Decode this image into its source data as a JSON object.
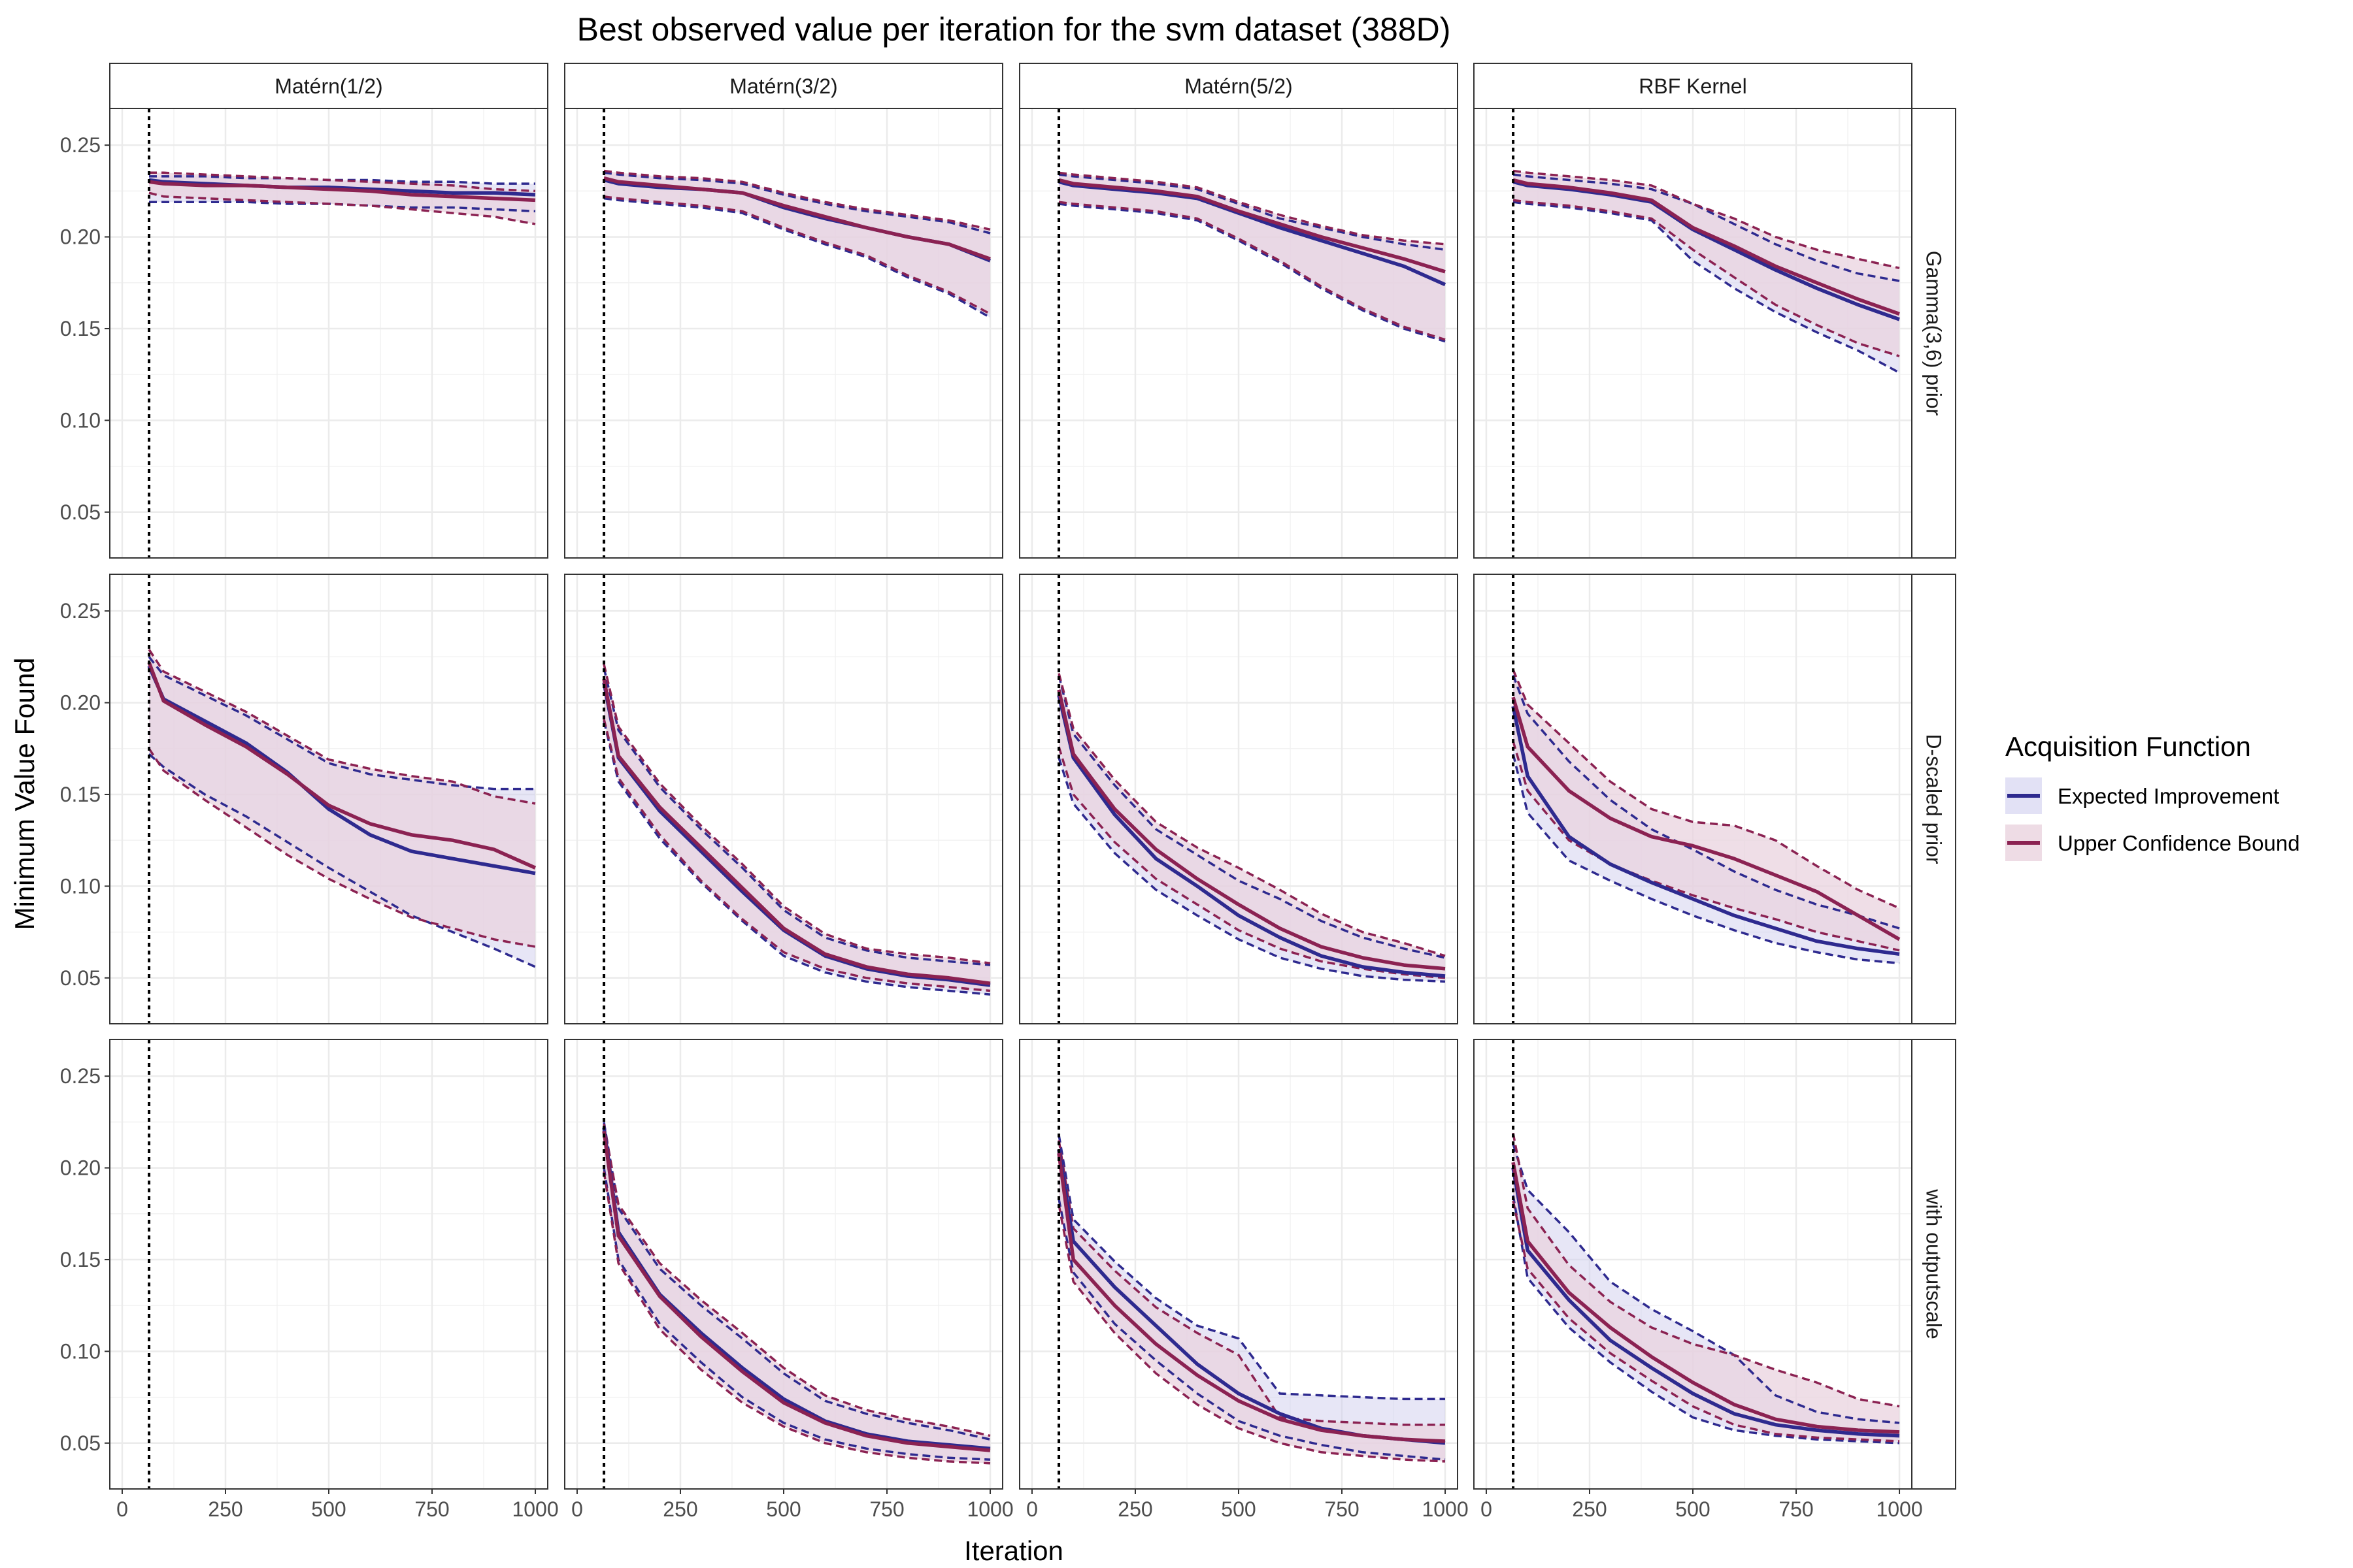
{
  "chart_data": {
    "type": "line",
    "title": "Best observed value per iteration for the svm dataset (388D)",
    "xlabel": "Iteration",
    "ylabel": "Minimum Value Found",
    "xlim": [
      -30,
      1030
    ],
    "ylim": [
      0.025,
      0.27
    ],
    "x_ticks": [
      0,
      250,
      500,
      750,
      1000
    ],
    "y_ticks": [
      0.05,
      0.1,
      0.15,
      0.2,
      0.25
    ],
    "x_tick_labels": [
      "0",
      "250",
      "500",
      "750",
      "1000"
    ],
    "y_tick_labels": [
      "0.05",
      "0.10",
      "0.15",
      "0.20",
      "0.25"
    ],
    "vline_x": 65,
    "grid": true,
    "columns": [
      "Matérn(1/2)",
      "Matérn(3/2)",
      "Matérn(5/2)",
      "RBF Kernel"
    ],
    "rows": [
      "Gamma(3,6) prior",
      "D-scaled prior",
      "with outputscale"
    ],
    "legend": {
      "title": "Acquisition Function",
      "position": "right",
      "items": [
        {
          "label": "Expected Improvement",
          "color": "#2e2a8f",
          "fill": "#cfcdee"
        },
        {
          "label": "Upper Confidence Bound",
          "color": "#8b2252",
          "fill": "#ead3df"
        }
      ]
    },
    "x": [
      65,
      100,
      200,
      300,
      400,
      500,
      600,
      700,
      800,
      900,
      1000
    ],
    "panels": [
      {
        "row": 0,
        "col": 0,
        "EI": {
          "mean": [
            0.231,
            0.23,
            0.229,
            0.228,
            0.227,
            0.227,
            0.226,
            0.225,
            0.224,
            0.224,
            0.223
          ],
          "lower": [
            0.219,
            0.219,
            0.219,
            0.219,
            0.218,
            0.218,
            0.217,
            0.216,
            0.216,
            0.215,
            0.214
          ],
          "upper": [
            0.233,
            0.233,
            0.233,
            0.232,
            0.232,
            0.231,
            0.231,
            0.23,
            0.23,
            0.229,
            0.229
          ]
        },
        "UCB": {
          "mean": [
            0.23,
            0.229,
            0.228,
            0.228,
            0.227,
            0.226,
            0.225,
            0.223,
            0.222,
            0.221,
            0.22
          ],
          "lower": [
            0.224,
            0.222,
            0.221,
            0.22,
            0.219,
            0.218,
            0.217,
            0.215,
            0.213,
            0.211,
            0.207
          ],
          "upper": [
            0.235,
            0.235,
            0.234,
            0.233,
            0.232,
            0.231,
            0.23,
            0.229,
            0.228,
            0.226,
            0.225
          ]
        }
      },
      {
        "row": 0,
        "col": 1,
        "EI": {
          "mean": [
            0.231,
            0.229,
            0.227,
            0.226,
            0.224,
            0.216,
            0.21,
            0.205,
            0.2,
            0.196,
            0.187
          ],
          "lower": [
            0.221,
            0.22,
            0.218,
            0.216,
            0.213,
            0.204,
            0.196,
            0.189,
            0.178,
            0.169,
            0.156
          ],
          "upper": [
            0.235,
            0.234,
            0.232,
            0.231,
            0.229,
            0.223,
            0.218,
            0.214,
            0.211,
            0.208,
            0.202
          ]
        },
        "UCB": {
          "mean": [
            0.232,
            0.23,
            0.228,
            0.226,
            0.224,
            0.217,
            0.211,
            0.205,
            0.2,
            0.196,
            0.188
          ],
          "lower": [
            0.222,
            0.221,
            0.219,
            0.217,
            0.214,
            0.205,
            0.197,
            0.19,
            0.179,
            0.17,
            0.158
          ],
          "upper": [
            0.236,
            0.235,
            0.233,
            0.232,
            0.23,
            0.224,
            0.219,
            0.215,
            0.212,
            0.209,
            0.204
          ]
        }
      },
      {
        "row": 0,
        "col": 2,
        "EI": {
          "mean": [
            0.23,
            0.228,
            0.226,
            0.224,
            0.221,
            0.213,
            0.205,
            0.198,
            0.191,
            0.184,
            0.174
          ],
          "lower": [
            0.218,
            0.217,
            0.215,
            0.213,
            0.209,
            0.198,
            0.186,
            0.172,
            0.16,
            0.15,
            0.143
          ],
          "upper": [
            0.234,
            0.233,
            0.231,
            0.229,
            0.226,
            0.218,
            0.21,
            0.205,
            0.2,
            0.196,
            0.193
          ]
        },
        "UCB": {
          "mean": [
            0.231,
            0.229,
            0.227,
            0.225,
            0.222,
            0.214,
            0.207,
            0.2,
            0.194,
            0.188,
            0.181
          ],
          "lower": [
            0.219,
            0.218,
            0.216,
            0.214,
            0.21,
            0.199,
            0.187,
            0.173,
            0.161,
            0.151,
            0.144
          ],
          "upper": [
            0.235,
            0.234,
            0.232,
            0.23,
            0.227,
            0.219,
            0.212,
            0.206,
            0.201,
            0.198,
            0.196
          ]
        }
      },
      {
        "row": 0,
        "col": 3,
        "EI": {
          "mean": [
            0.23,
            0.228,
            0.226,
            0.223,
            0.219,
            0.204,
            0.193,
            0.182,
            0.172,
            0.163,
            0.155
          ],
          "lower": [
            0.219,
            0.218,
            0.216,
            0.213,
            0.209,
            0.187,
            0.172,
            0.159,
            0.148,
            0.138,
            0.126
          ],
          "upper": [
            0.234,
            0.233,
            0.231,
            0.229,
            0.226,
            0.218,
            0.207,
            0.196,
            0.187,
            0.18,
            0.176
          ]
        },
        "UCB": {
          "mean": [
            0.231,
            0.229,
            0.227,
            0.224,
            0.22,
            0.205,
            0.195,
            0.184,
            0.175,
            0.166,
            0.158
          ],
          "lower": [
            0.22,
            0.219,
            0.217,
            0.214,
            0.21,
            0.193,
            0.178,
            0.163,
            0.152,
            0.142,
            0.135
          ],
          "upper": [
            0.236,
            0.235,
            0.233,
            0.231,
            0.228,
            0.218,
            0.21,
            0.2,
            0.193,
            0.188,
            0.183
          ]
        }
      },
      {
        "row": 1,
        "col": 0,
        "EI": {
          "mean": [
            0.22,
            0.202,
            0.19,
            0.178,
            0.162,
            0.142,
            0.128,
            0.119,
            0.115,
            0.111,
            0.107
          ],
          "lower": [
            0.172,
            0.165,
            0.15,
            0.138,
            0.124,
            0.11,
            0.097,
            0.084,
            0.075,
            0.066,
            0.056
          ],
          "upper": [
            0.225,
            0.215,
            0.204,
            0.193,
            0.18,
            0.167,
            0.161,
            0.158,
            0.155,
            0.153,
            0.153
          ]
        },
        "UCB": {
          "mean": [
            0.222,
            0.201,
            0.188,
            0.176,
            0.161,
            0.144,
            0.134,
            0.128,
            0.125,
            0.12,
            0.11
          ],
          "lower": [
            0.175,
            0.163,
            0.147,
            0.132,
            0.117,
            0.104,
            0.093,
            0.083,
            0.077,
            0.071,
            0.067
          ],
          "upper": [
            0.229,
            0.217,
            0.206,
            0.195,
            0.182,
            0.169,
            0.164,
            0.16,
            0.157,
            0.149,
            0.145
          ]
        }
      },
      {
        "row": 1,
        "col": 1,
        "EI": {
          "mean": [
            0.211,
            0.17,
            0.141,
            0.119,
            0.097,
            0.076,
            0.062,
            0.055,
            0.051,
            0.049,
            0.046
          ],
          "lower": [
            0.19,
            0.157,
            0.126,
            0.102,
            0.081,
            0.062,
            0.053,
            0.048,
            0.045,
            0.043,
            0.041
          ],
          "upper": [
            0.219,
            0.185,
            0.154,
            0.131,
            0.11,
            0.087,
            0.072,
            0.065,
            0.061,
            0.059,
            0.057
          ]
        },
        "UCB": {
          "mean": [
            0.213,
            0.171,
            0.143,
            0.121,
            0.099,
            0.077,
            0.063,
            0.056,
            0.052,
            0.05,
            0.047
          ],
          "lower": [
            0.191,
            0.159,
            0.128,
            0.103,
            0.082,
            0.064,
            0.055,
            0.05,
            0.047,
            0.045,
            0.043
          ],
          "upper": [
            0.221,
            0.187,
            0.156,
            0.133,
            0.112,
            0.089,
            0.074,
            0.066,
            0.063,
            0.061,
            0.058
          ]
        }
      },
      {
        "row": 1,
        "col": 2,
        "EI": {
          "mean": [
            0.204,
            0.17,
            0.139,
            0.115,
            0.1,
            0.084,
            0.072,
            0.062,
            0.056,
            0.053,
            0.051
          ],
          "lower": [
            0.17,
            0.145,
            0.118,
            0.098,
            0.084,
            0.071,
            0.061,
            0.055,
            0.051,
            0.049,
            0.048
          ],
          "upper": [
            0.215,
            0.183,
            0.155,
            0.131,
            0.117,
            0.103,
            0.093,
            0.081,
            0.072,
            0.066,
            0.061
          ]
        },
        "UCB": {
          "mean": [
            0.207,
            0.172,
            0.142,
            0.12,
            0.104,
            0.09,
            0.077,
            0.067,
            0.061,
            0.057,
            0.055
          ],
          "lower": [
            0.176,
            0.15,
            0.124,
            0.104,
            0.09,
            0.076,
            0.066,
            0.059,
            0.055,
            0.052,
            0.05
          ],
          "upper": [
            0.216,
            0.186,
            0.158,
            0.135,
            0.121,
            0.11,
            0.098,
            0.085,
            0.075,
            0.069,
            0.062
          ]
        }
      },
      {
        "row": 1,
        "col": 3,
        "EI": {
          "mean": [
            0.198,
            0.16,
            0.127,
            0.112,
            0.102,
            0.093,
            0.084,
            0.077,
            0.07,
            0.066,
            0.063
          ],
          "lower": [
            0.172,
            0.14,
            0.114,
            0.103,
            0.093,
            0.084,
            0.076,
            0.069,
            0.064,
            0.06,
            0.058
          ],
          "upper": [
            0.215,
            0.194,
            0.168,
            0.147,
            0.131,
            0.12,
            0.108,
            0.098,
            0.09,
            0.084,
            0.077
          ]
        },
        "UCB": {
          "mean": [
            0.203,
            0.176,
            0.152,
            0.137,
            0.127,
            0.122,
            0.115,
            0.106,
            0.097,
            0.084,
            0.071
          ],
          "lower": [
            0.179,
            0.152,
            0.125,
            0.112,
            0.103,
            0.095,
            0.088,
            0.082,
            0.075,
            0.07,
            0.065
          ],
          "upper": [
            0.218,
            0.199,
            0.178,
            0.157,
            0.142,
            0.135,
            0.133,
            0.125,
            0.111,
            0.098,
            0.088
          ]
        }
      },
      {
        "row": 2,
        "col": 0,
        "EI": null,
        "UCB": null
      },
      {
        "row": 2,
        "col": 1,
        "EI": {
          "mean": [
            0.222,
            0.165,
            0.131,
            0.11,
            0.091,
            0.074,
            0.062,
            0.055,
            0.051,
            0.049,
            0.047
          ],
          "lower": [
            0.2,
            0.15,
            0.115,
            0.094,
            0.075,
            0.061,
            0.052,
            0.047,
            0.044,
            0.042,
            0.041
          ],
          "upper": [
            0.225,
            0.178,
            0.145,
            0.125,
            0.107,
            0.088,
            0.073,
            0.066,
            0.061,
            0.057,
            0.052
          ]
        },
        "UCB": {
          "mean": [
            0.22,
            0.163,
            0.13,
            0.108,
            0.089,
            0.072,
            0.061,
            0.054,
            0.05,
            0.048,
            0.046
          ],
          "lower": [
            0.198,
            0.148,
            0.112,
            0.09,
            0.072,
            0.059,
            0.05,
            0.045,
            0.042,
            0.04,
            0.039
          ],
          "upper": [
            0.224,
            0.18,
            0.148,
            0.128,
            0.11,
            0.091,
            0.076,
            0.068,
            0.063,
            0.059,
            0.054
          ]
        }
      },
      {
        "row": 2,
        "col": 2,
        "EI": {
          "mean": [
            0.21,
            0.16,
            0.135,
            0.114,
            0.093,
            0.077,
            0.066,
            0.058,
            0.054,
            0.052,
            0.05
          ],
          "lower": [
            0.183,
            0.143,
            0.115,
            0.095,
            0.077,
            0.062,
            0.054,
            0.049,
            0.045,
            0.043,
            0.041
          ],
          "upper": [
            0.218,
            0.172,
            0.149,
            0.129,
            0.114,
            0.107,
            0.077,
            0.076,
            0.075,
            0.074,
            0.074
          ]
        },
        "UCB": {
          "mean": [
            0.208,
            0.15,
            0.125,
            0.104,
            0.087,
            0.073,
            0.063,
            0.057,
            0.054,
            0.052,
            0.051
          ],
          "lower": [
            0.18,
            0.138,
            0.11,
            0.088,
            0.071,
            0.058,
            0.05,
            0.045,
            0.043,
            0.041,
            0.04
          ],
          "upper": [
            0.215,
            0.167,
            0.144,
            0.124,
            0.11,
            0.098,
            0.064,
            0.062,
            0.061,
            0.06,
            0.06
          ]
        }
      },
      {
        "row": 2,
        "col": 3,
        "EI": {
          "mean": [
            0.2,
            0.155,
            0.128,
            0.106,
            0.091,
            0.077,
            0.066,
            0.06,
            0.057,
            0.055,
            0.054
          ],
          "lower": [
            0.185,
            0.14,
            0.113,
            0.094,
            0.078,
            0.064,
            0.057,
            0.054,
            0.052,
            0.051,
            0.05
          ],
          "upper": [
            0.213,
            0.188,
            0.165,
            0.138,
            0.123,
            0.111,
            0.098,
            0.076,
            0.067,
            0.063,
            0.061
          ]
        },
        "UCB": {
          "mean": [
            0.203,
            0.16,
            0.132,
            0.113,
            0.097,
            0.083,
            0.071,
            0.063,
            0.059,
            0.057,
            0.056
          ],
          "lower": [
            0.182,
            0.145,
            0.118,
            0.099,
            0.084,
            0.07,
            0.06,
            0.055,
            0.053,
            0.052,
            0.051
          ],
          "upper": [
            0.219,
            0.178,
            0.147,
            0.127,
            0.113,
            0.104,
            0.098,
            0.09,
            0.083,
            0.074,
            0.07
          ]
        }
      }
    ]
  }
}
